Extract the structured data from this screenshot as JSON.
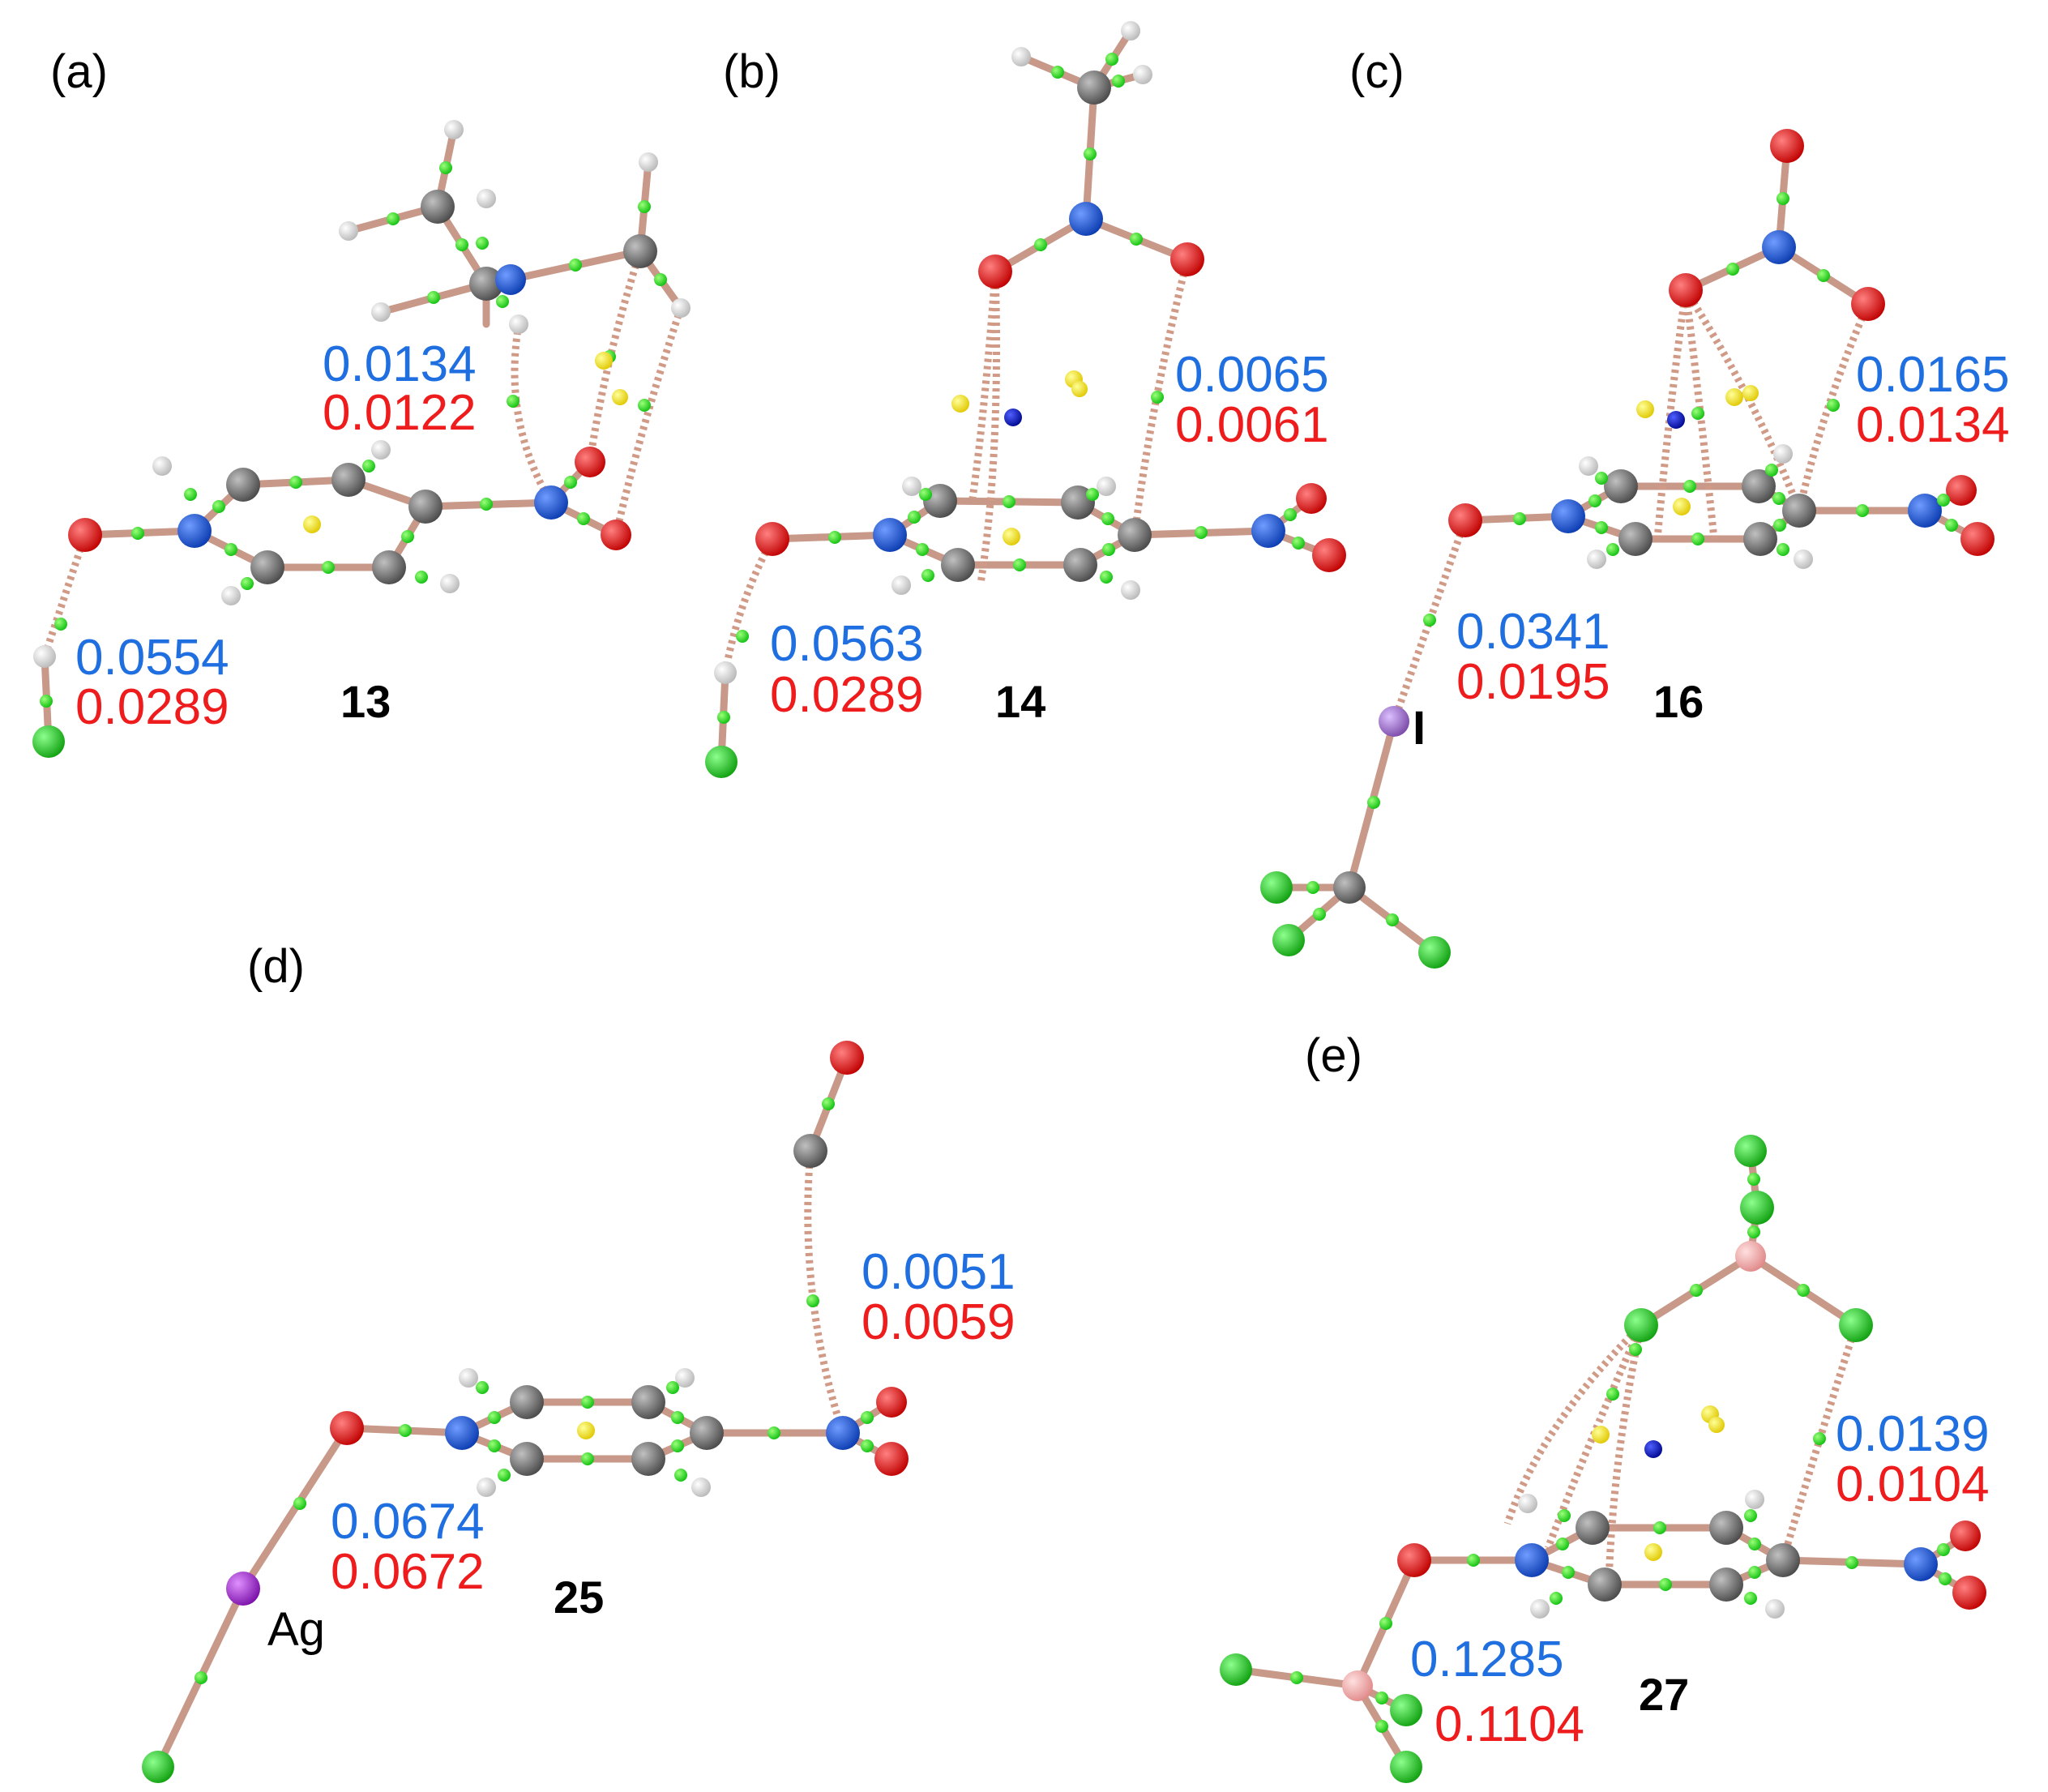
{
  "colors": {
    "bond": "#c89888",
    "carbon": "#707070",
    "hydrogen": "#e8e8e8",
    "nitrogen": "#1450d8",
    "oxygen": "#ee1010",
    "halogen": "#1ec81e",
    "iodine": "#9b6ac0",
    "silver": "#9b30c8",
    "metal": "#f2a8a8",
    "bcp": "#22dd22",
    "rcp": "#ffee00",
    "ccp": "#0a14c8",
    "blue_text": "#1f6fe0",
    "red_text": "#ee1c1c"
  },
  "panels": [
    {
      "label": "(a)",
      "compound": "13",
      "values": [
        {
          "blue": "0.0134",
          "red": "0.0122"
        },
        {
          "blue": "0.0554",
          "red": "0.0289"
        }
      ]
    },
    {
      "label": "(b)",
      "compound": "14",
      "values": [
        {
          "blue": "0.0065",
          "red": "0.0061"
        },
        {
          "blue": "0.0563",
          "red": "0.0289"
        }
      ]
    },
    {
      "label": "(c)",
      "compound": "16",
      "atom_label": "I",
      "values": [
        {
          "blue": "0.0165",
          "red": "0.0134"
        },
        {
          "blue": "0.0341",
          "red": "0.0195"
        }
      ]
    },
    {
      "label": "(d)",
      "compound": "25",
      "atom_label": "Ag",
      "values": [
        {
          "blue": "0.0051",
          "red": "0.0059"
        },
        {
          "blue": "0.0674",
          "red": "0.0672"
        }
      ]
    },
    {
      "label": "(e)",
      "compound": "27",
      "values": [
        {
          "blue": "0.0139",
          "red": "0.0104"
        },
        {
          "blue": "0.1285",
          "red": "0.1104"
        }
      ]
    }
  ]
}
